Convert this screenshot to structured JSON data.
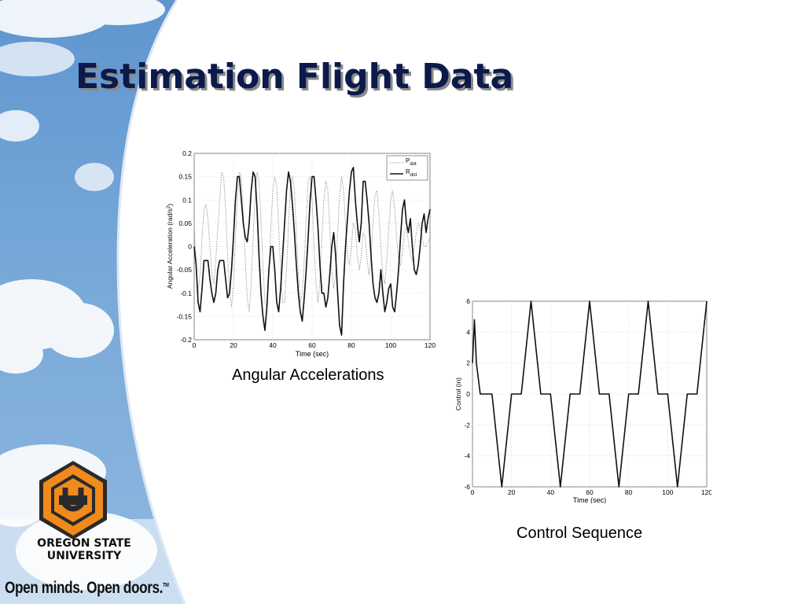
{
  "slide": {
    "title": "Estimation Flight Data",
    "logo": {
      "name_lines": "OREGON STATE\nUNIVERSITY",
      "tagline": "Open minds. Open doors.",
      "trademark": "TM",
      "logo_colors": {
        "orange": "#f08a1c",
        "dark": "#2a2a2a"
      }
    }
  },
  "chart_data": [
    {
      "type": "line",
      "caption": "Angular Accelerations",
      "xlabel": "Time (sec)",
      "ylabel": "Angular Acceleration (rad/s²)",
      "ylabel_base": "Angular Acceleration (rad/s",
      "ylabel_exp": "2",
      "ylabel_tail": ")",
      "xlim": [
        0,
        120
      ],
      "ylim": [
        -0.2,
        0.2
      ],
      "xticks": [
        0,
        20,
        40,
        60,
        80,
        100,
        120
      ],
      "yticks": [
        -0.2,
        -0.15,
        -0.1,
        -0.05,
        0,
        0.05,
        0.1,
        0.15,
        0.2
      ],
      "ytick_labels": [
        "-0.2",
        "-0.15",
        "-0.1",
        "-0.05",
        "0",
        "0.05",
        "0.1",
        "0.15",
        "0.2"
      ],
      "grid": true,
      "legend": "top-right",
      "series": [
        {
          "name": "P",
          "subscript": "dot",
          "style": "dotted",
          "color": "#9a9a9a",
          "x": [
            0,
            1,
            2,
            3,
            4,
            5,
            6,
            7,
            8,
            9,
            10,
            11,
            12,
            13,
            14,
            15,
            16,
            17,
            18,
            19,
            20,
            21,
            22,
            23,
            24,
            25,
            26,
            27,
            28,
            29,
            30,
            31,
            32,
            33,
            34,
            35,
            36,
            37,
            38,
            39,
            40,
            41,
            42,
            43,
            44,
            45,
            46,
            47,
            48,
            49,
            50,
            51,
            52,
            53,
            54,
            55,
            56,
            57,
            58,
            59,
            60,
            61,
            62,
            63,
            64,
            65,
            66,
            67,
            68,
            69,
            70,
            71,
            72,
            73,
            74,
            75,
            76,
            77,
            78,
            79,
            80,
            81,
            82,
            83,
            84,
            85,
            86,
            87,
            88,
            89,
            90,
            91,
            92,
            93,
            94,
            95,
            96,
            97,
            98,
            99,
            100,
            101,
            102,
            103,
            104,
            105,
            106,
            107,
            108,
            109,
            110,
            111,
            112,
            113,
            114,
            115,
            116,
            117,
            118,
            119,
            120
          ],
          "values": [
            0.05,
            -0.04,
            -0.1,
            -0.06,
            0.02,
            0.08,
            0.09,
            0.06,
            0.0,
            -0.06,
            -0.08,
            -0.03,
            0.04,
            0.1,
            0.16,
            0.15,
            0.08,
            -0.02,
            -0.1,
            -0.13,
            -0.08,
            0.02,
            0.1,
            0.16,
            0.15,
            0.07,
            -0.03,
            -0.11,
            -0.14,
            -0.08,
            0.02,
            0.11,
            0.16,
            0.14,
            0.06,
            -0.04,
            -0.12,
            -0.13,
            -0.06,
            0.04,
            0.12,
            0.15,
            0.13,
            0.04,
            -0.05,
            -0.12,
            -0.12,
            -0.05,
            0.05,
            0.13,
            0.15,
            0.12,
            0.03,
            -0.06,
            -0.12,
            -0.1,
            -0.03,
            0.06,
            0.14,
            0.15,
            0.1,
            0.0,
            -0.08,
            -0.12,
            -0.07,
            0.02,
            0.1,
            0.14,
            0.12,
            0.04,
            -0.05,
            -0.09,
            -0.06,
            0.03,
            0.11,
            0.15,
            0.12,
            0.05,
            -0.02,
            -0.04,
            0.0,
            0.05,
            0.04,
            -0.02,
            -0.05,
            -0.02,
            0.03,
            0.02,
            -0.03,
            -0.06,
            -0.02,
            0.05,
            0.11,
            0.12,
            0.07,
            0.0,
            -0.06,
            -0.08,
            -0.03,
            0.04,
            0.1,
            0.12,
            0.08,
            0.02,
            -0.03,
            -0.04,
            -0.01,
            0.03,
            0.04,
            0.01,
            -0.02,
            -0.03,
            0.0,
            0.03,
            0.05,
            0.04,
            0.02,
            0.0,
            0.0,
            0.01,
            0.02
          ]
        },
        {
          "name": "R",
          "subscript": "dot",
          "style": "solid",
          "color": "#111111",
          "x": [
            0,
            1,
            2,
            3,
            4,
            5,
            6,
            7,
            8,
            9,
            10,
            11,
            12,
            13,
            14,
            15,
            16,
            17,
            18,
            19,
            20,
            21,
            22,
            23,
            24,
            25,
            26,
            27,
            28,
            29,
            30,
            31,
            32,
            33,
            34,
            35,
            36,
            37,
            38,
            39,
            40,
            41,
            42,
            43,
            44,
            45,
            46,
            47,
            48,
            49,
            50,
            51,
            52,
            53,
            54,
            55,
            56,
            57,
            58,
            59,
            60,
            61,
            62,
            63,
            64,
            65,
            66,
            67,
            68,
            69,
            70,
            71,
            72,
            73,
            74,
            75,
            76,
            77,
            78,
            79,
            80,
            81,
            82,
            83,
            84,
            85,
            86,
            87,
            88,
            89,
            90,
            91,
            92,
            93,
            94,
            95,
            96,
            97,
            98,
            99,
            100,
            101,
            102,
            103,
            104,
            105,
            106,
            107,
            108,
            109,
            110,
            111,
            112,
            113,
            114,
            115,
            116,
            117,
            118,
            119,
            120
          ],
          "values": [
            0.0,
            -0.04,
            -0.12,
            -0.14,
            -0.09,
            -0.03,
            -0.03,
            -0.03,
            -0.07,
            -0.1,
            -0.12,
            -0.1,
            -0.05,
            -0.03,
            -0.03,
            -0.03,
            -0.07,
            -0.11,
            -0.1,
            -0.05,
            0.02,
            0.1,
            0.15,
            0.15,
            0.1,
            0.05,
            0.02,
            0.01,
            0.05,
            0.12,
            0.16,
            0.15,
            0.08,
            -0.02,
            -0.1,
            -0.15,
            -0.18,
            -0.13,
            -0.05,
            0.0,
            0.0,
            -0.05,
            -0.12,
            -0.14,
            -0.09,
            -0.02,
            0.05,
            0.12,
            0.16,
            0.14,
            0.09,
            0.03,
            -0.04,
            -0.1,
            -0.14,
            -0.16,
            -0.11,
            -0.05,
            0.02,
            0.1,
            0.15,
            0.15,
            0.1,
            0.04,
            -0.04,
            -0.1,
            -0.1,
            -0.13,
            -0.11,
            -0.06,
            0.0,
            0.03,
            -0.02,
            -0.1,
            -0.17,
            -0.19,
            -0.08,
            0.0,
            0.06,
            0.12,
            0.16,
            0.17,
            0.1,
            0.05,
            0.01,
            0.05,
            0.14,
            0.14,
            0.1,
            0.05,
            -0.02,
            -0.08,
            -0.11,
            -0.12,
            -0.1,
            -0.05,
            -0.1,
            -0.14,
            -0.12,
            -0.09,
            -0.08,
            -0.13,
            -0.14,
            -0.1,
            -0.05,
            0.02,
            0.08,
            0.1,
            0.05,
            0.03,
            0.06,
            0.0,
            -0.05,
            -0.06,
            -0.04,
            0.0,
            0.05,
            0.07,
            0.03,
            0.06,
            0.08
          ]
        }
      ]
    },
    {
      "type": "line",
      "caption": "Control Sequence",
      "xlabel": "Time (sec)",
      "ylabel": "Control (in)",
      "xlim": [
        0,
        120
      ],
      "ylim": [
        -6,
        6
      ],
      "xticks": [
        0,
        20,
        40,
        60,
        80,
        100,
        120
      ],
      "yticks": [
        -6,
        -4,
        -2,
        0,
        2,
        4,
        6
      ],
      "ytick_labels": [
        "-6",
        "-4",
        "-2",
        "0",
        "2",
        "4",
        "6"
      ],
      "grid": true,
      "series": [
        {
          "style": "solid",
          "color": "#111111",
          "x": [
            0,
            1,
            2,
            4,
            10,
            15,
            20,
            25,
            30,
            35,
            40,
            45,
            50,
            55,
            60,
            65,
            70,
            75,
            80,
            85,
            90,
            95,
            100,
            105,
            110,
            115,
            120
          ],
          "values": [
            2,
            4.8,
            2,
            0,
            0,
            -6,
            0,
            0,
            6,
            0,
            0,
            -6,
            0,
            0,
            6,
            0,
            0,
            -6,
            0,
            0,
            6,
            0,
            0,
            -6,
            0,
            0,
            6
          ]
        }
      ]
    }
  ]
}
